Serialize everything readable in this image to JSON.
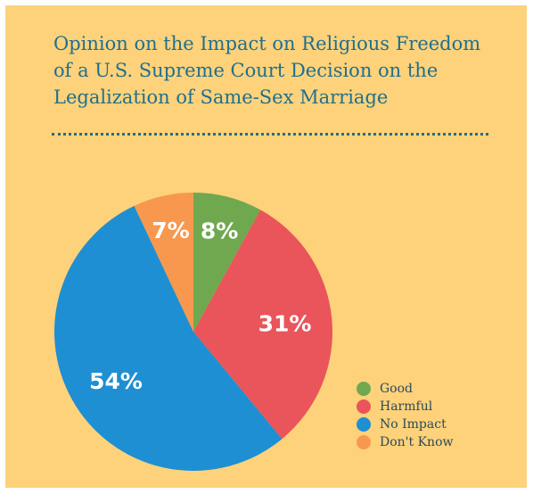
{
  "title_lines": [
    "Opinion on the Impact on Religious Freedom",
    "of a U.S. Supreme Court Decision on the",
    "Legalization of Same-Sex Marriage"
  ],
  "colors": {
    "background": "#fdd27a",
    "title": "#1f6f8f",
    "divider": "#2b6a86"
  },
  "chart_data": {
    "type": "pie",
    "start": "12 o'clock",
    "direction": "clockwise",
    "slices": [
      {
        "label": "Good",
        "value": 8,
        "display": "8%",
        "color": "#70a850"
      },
      {
        "label": "Harmful",
        "value": 31,
        "display": "31%",
        "color": "#e9555a"
      },
      {
        "label": "No Impact",
        "value": 54,
        "display": "54%",
        "color": "#1e8fd2"
      },
      {
        "label": "Don't Know",
        "value": 7,
        "display": "7%",
        "color": "#f7984e"
      }
    ],
    "legend_position": "bottom-right"
  }
}
